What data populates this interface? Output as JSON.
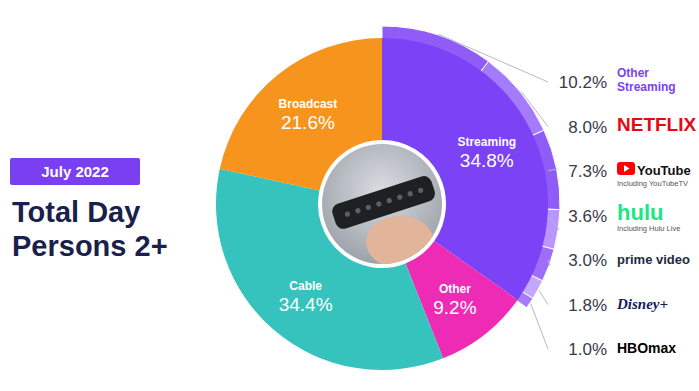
{
  "chart_data": {
    "type": "donut",
    "title": "Total Day Persons 2+",
    "subtitle": "July 2022",
    "categories": [
      "Streaming",
      "Other",
      "Cable",
      "Broadcast"
    ],
    "values": [
      34.8,
      9.2,
      34.4,
      21.6
    ],
    "value_labels": [
      "34.8%",
      "9.2%",
      "34.4%",
      "21.6%"
    ],
    "colors": [
      "#7b42f6",
      "#ee2bb5",
      "#37c3bd",
      "#f7941e"
    ],
    "data_labels": true,
    "breakdown": {
      "name": "Streaming",
      "categories": [
        "Other Streaming",
        "NETFLIX",
        "YouTube",
        "hulu",
        "prime video",
        "Disney+",
        "HBOmax"
      ],
      "notes": [
        null,
        null,
        "Including YouTubeTV",
        "Including Hulu Live",
        null,
        null,
        null
      ],
      "values": [
        10.2,
        8.0,
        7.3,
        3.6,
        3.0,
        1.8,
        1.0
      ],
      "value_labels": [
        "10.2%",
        "8.0%",
        "7.3%",
        "3.6%",
        "3.0%",
        "1.8%",
        "1.0%"
      ],
      "colors": [
        "#8f5cf8",
        "#a47bfa",
        "#8f5cf8",
        "#b896fb",
        "#9d6ff9",
        "#c4a8fc",
        "#a47bfa"
      ]
    }
  }
}
